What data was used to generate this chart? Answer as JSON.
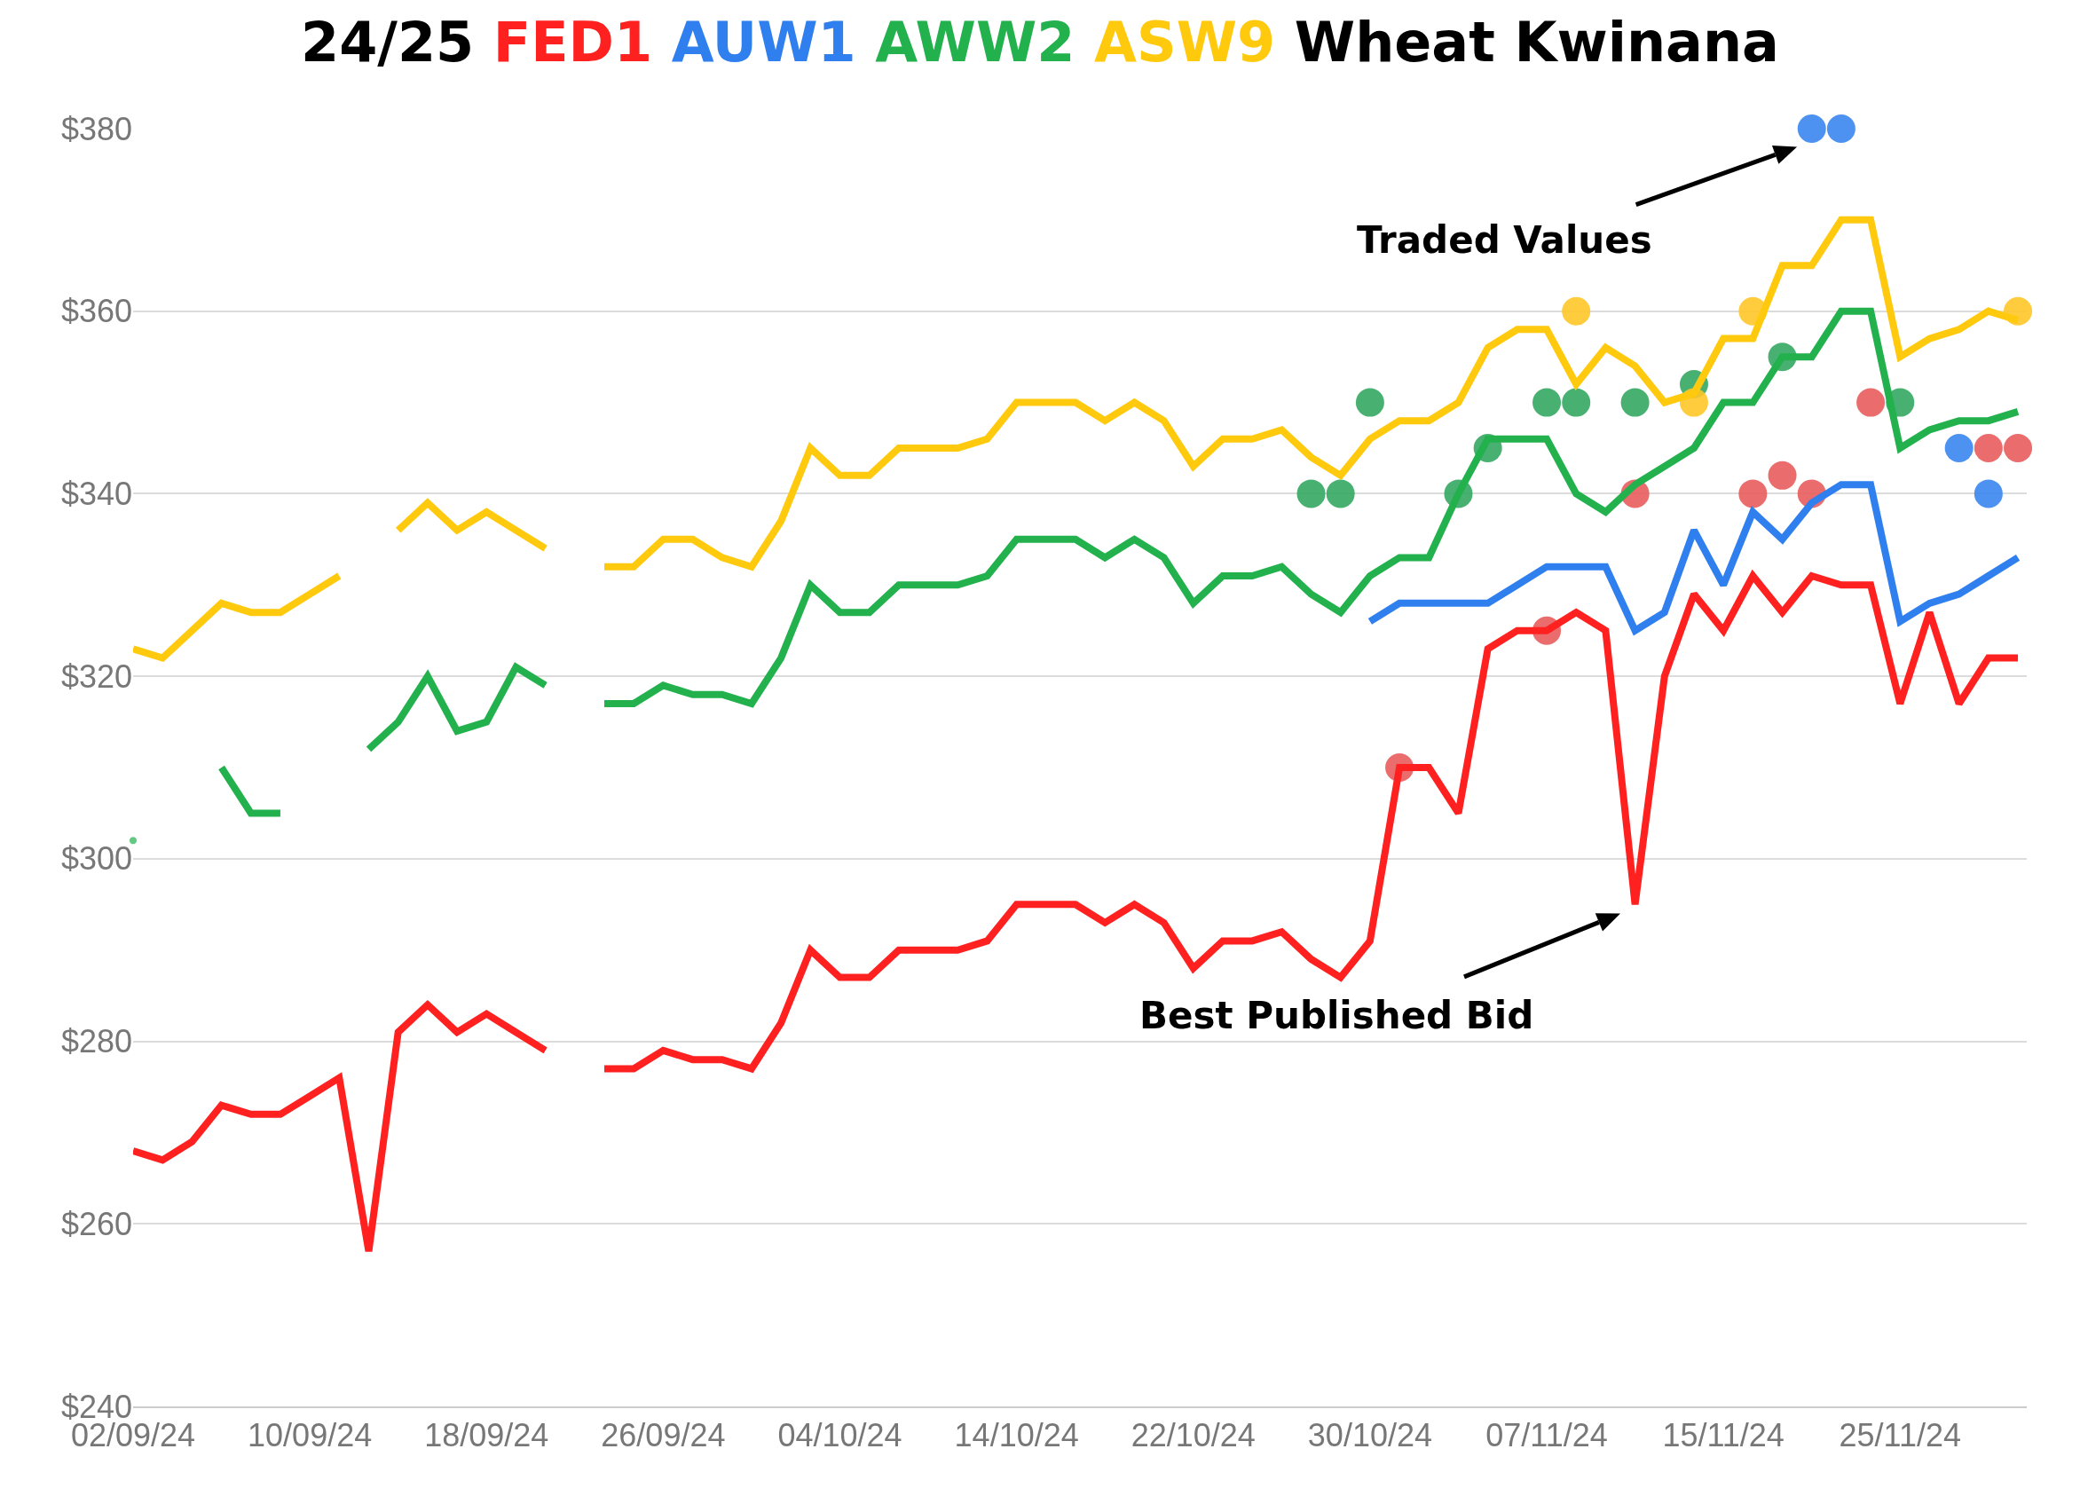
{
  "chart_data": {
    "type": "line",
    "title": "24/25 FED1 AUW1 AWW2 ASW9 Wheat Kwinana",
    "categories": [
      "02/09/24",
      null,
      null,
      null,
      null,
      null,
      "10/09/24",
      null,
      null,
      null,
      null,
      null,
      "18/09/24",
      null,
      null,
      null,
      null,
      null,
      "26/09/24",
      null,
      null,
      null,
      null,
      null,
      "04/10/24",
      null,
      null,
      null,
      null,
      null,
      "14/10/24",
      null,
      null,
      null,
      null,
      null,
      "22/10/24",
      null,
      null,
      null,
      null,
      null,
      "30/10/24",
      null,
      null,
      null,
      null,
      null,
      "07/11/24",
      null,
      null,
      null,
      null,
      null,
      "15/11/24",
      null,
      null,
      null,
      null,
      null,
      "25/11/24",
      null,
      null,
      null,
      null
    ],
    "series": [
      {
        "type": "line",
        "color": "#ff2020",
        "values": [
          268,
          267,
          269,
          273,
          272,
          272,
          274,
          276,
          257,
          281,
          284,
          281,
          283,
          281,
          279,
          null,
          277,
          277,
          279,
          278,
          278,
          277,
          282,
          290,
          287,
          287,
          290,
          290,
          290,
          291,
          295,
          295,
          295,
          293,
          295,
          293,
          288,
          291,
          291,
          292,
          289,
          287,
          291,
          310,
          310,
          305,
          323,
          325,
          325,
          327,
          325,
          295,
          320,
          329,
          325,
          331,
          327,
          331,
          330,
          330,
          317,
          327,
          317,
          322,
          322
        ]
      },
      {
        "type": "line",
        "color": "#2f7fef",
        "values": [
          null,
          null,
          null,
          null,
          null,
          null,
          null,
          null,
          null,
          null,
          null,
          null,
          null,
          null,
          null,
          null,
          null,
          null,
          null,
          null,
          null,
          null,
          null,
          null,
          null,
          null,
          null,
          null,
          null,
          null,
          null,
          null,
          null,
          null,
          null,
          null,
          null,
          null,
          null,
          null,
          null,
          null,
          326,
          328,
          328,
          328,
          328,
          330,
          332,
          332,
          332,
          325,
          327,
          336,
          330,
          338,
          335,
          339,
          341,
          341,
          326,
          328,
          329,
          331,
          333
        ]
      },
      {
        "type": "line",
        "color": "#22b14c",
        "values": [
          302,
          null,
          null,
          310,
          305,
          305,
          null,
          null,
          312,
          315,
          320,
          314,
          315,
          321,
          319,
          null,
          317,
          317,
          319,
          318,
          318,
          317,
          322,
          330,
          327,
          327,
          330,
          330,
          330,
          331,
          335,
          335,
          335,
          333,
          335,
          333,
          328,
          331,
          331,
          332,
          329,
          327,
          331,
          333,
          333,
          340,
          346,
          346,
          346,
          340,
          338,
          341,
          343,
          345,
          350,
          350,
          355,
          355,
          360,
          360,
          345,
          347,
          348,
          348,
          349
        ]
      },
      {
        "type": "line",
        "color": "#ffc90e",
        "values": [
          323,
          322,
          325,
          328,
          327,
          327,
          329,
          331,
          null,
          336,
          339,
          336,
          338,
          336,
          334,
          null,
          332,
          332,
          335,
          335,
          333,
          332,
          337,
          345,
          342,
          342,
          345,
          345,
          345,
          346,
          350,
          350,
          350,
          348,
          350,
          348,
          343,
          346,
          346,
          347,
          344,
          342,
          346,
          348,
          348,
          350,
          356,
          358,
          358,
          352,
          356,
          354,
          350,
          351,
          357,
          357,
          365,
          365,
          370,
          370,
          355,
          357,
          358,
          360,
          359
        ]
      },
      {
        "type": "scatter",
        "color": "#e85c5c",
        "values": [
          null,
          null,
          null,
          null,
          null,
          null,
          null,
          null,
          null,
          null,
          null,
          null,
          null,
          null,
          null,
          null,
          null,
          null,
          null,
          null,
          null,
          null,
          null,
          null,
          null,
          null,
          null,
          null,
          null,
          null,
          null,
          null,
          null,
          null,
          null,
          null,
          null,
          null,
          null,
          null,
          null,
          null,
          null,
          310,
          null,
          null,
          null,
          null,
          325,
          null,
          null,
          340,
          null,
          null,
          null,
          340,
          342,
          340,
          null,
          350,
          null,
          null,
          null,
          345,
          345
        ]
      },
      {
        "type": "scatter",
        "color": "#3a86ee",
        "values": [
          null,
          null,
          null,
          null,
          null,
          null,
          null,
          null,
          null,
          null,
          null,
          null,
          null,
          null,
          null,
          null,
          null,
          null,
          null,
          null,
          null,
          null,
          null,
          null,
          null,
          null,
          null,
          null,
          null,
          null,
          null,
          null,
          null,
          null,
          null,
          null,
          null,
          null,
          null,
          null,
          null,
          null,
          null,
          null,
          null,
          null,
          null,
          null,
          null,
          null,
          null,
          null,
          null,
          null,
          null,
          null,
          null,
          380,
          380,
          null,
          null,
          null,
          345,
          340,
          null
        ]
      },
      {
        "type": "scatter",
        "color": "#34a862",
        "values": [
          null,
          null,
          null,
          null,
          null,
          null,
          null,
          null,
          null,
          null,
          null,
          null,
          null,
          null,
          null,
          null,
          null,
          null,
          null,
          null,
          null,
          null,
          null,
          null,
          null,
          null,
          null,
          null,
          null,
          null,
          null,
          null,
          null,
          null,
          null,
          null,
          null,
          null,
          null,
          null,
          340,
          340,
          350,
          null,
          null,
          340,
          345,
          null,
          350,
          350,
          null,
          350,
          null,
          352,
          null,
          null,
          355,
          null,
          null,
          null,
          350,
          null,
          null,
          null,
          null
        ]
      },
      {
        "type": "scatter",
        "color": "#ffc629",
        "values": [
          null,
          null,
          null,
          null,
          null,
          null,
          null,
          null,
          null,
          null,
          null,
          null,
          null,
          null,
          null,
          null,
          null,
          null,
          null,
          null,
          null,
          null,
          null,
          null,
          null,
          null,
          null,
          null,
          null,
          null,
          null,
          null,
          null,
          null,
          null,
          null,
          null,
          null,
          null,
          null,
          null,
          null,
          null,
          null,
          null,
          null,
          null,
          null,
          null,
          360,
          null,
          null,
          null,
          350,
          null,
          360,
          null,
          null,
          null,
          null,
          null,
          null,
          null,
          null,
          360
        ]
      }
    ],
    "ylim": [
      240,
      380
    ],
    "yticks": [
      {
        "value": 240,
        "label": "$240"
      },
      {
        "value": 260,
        "label": "$260"
      },
      {
        "value": 280,
        "label": "$280"
      },
      {
        "value": 300,
        "label": "$300"
      },
      {
        "value": 320,
        "label": "$320"
      },
      {
        "value": 340,
        "label": "$340"
      },
      {
        "value": 360,
        "label": "$360"
      },
      {
        "value": 380,
        "label": "$380"
      }
    ],
    "grid": "y",
    "annotations": [
      "Traded Values",
      "Best Published Bid"
    ]
  }
}
